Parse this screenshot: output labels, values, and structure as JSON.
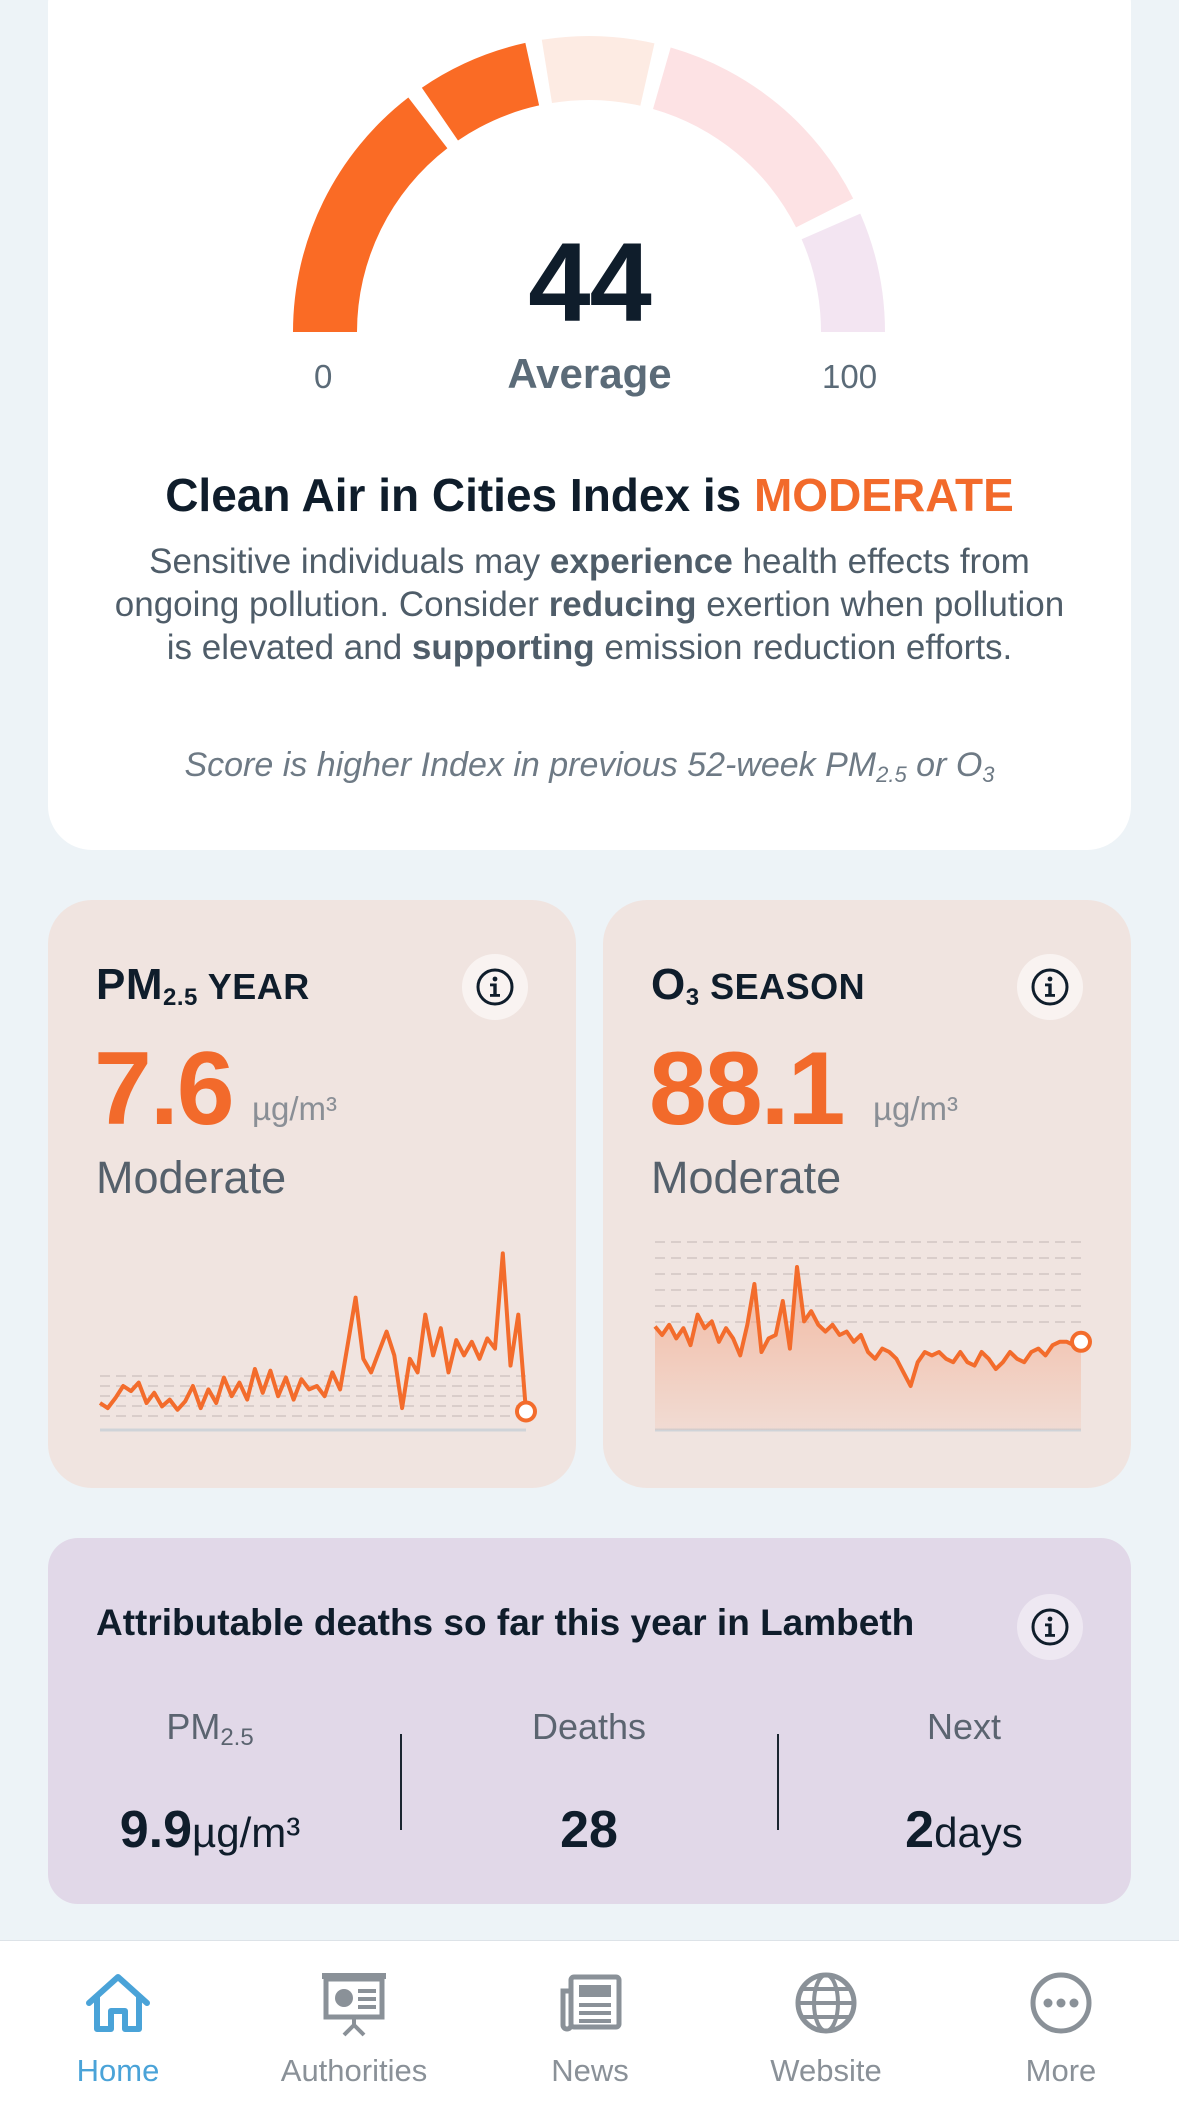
{
  "gauge": {
    "value": "44",
    "label": "Average",
    "min_label": "0",
    "max_label": "100",
    "fraction": 0.44,
    "colors": {
      "active": "#fa6b25",
      "inactive_1": "#fdebe3",
      "inactive_2": "#fde2e4",
      "inactive_3": "#f3e5f2"
    }
  },
  "index": {
    "title_prefix": "Clean Air in Cities Index is",
    "level": "MODERATE",
    "desc_1": "Sensitive individuals may ",
    "desc_b1": "experience",
    "desc_2": " health effects from ongoing pollution. Consider ",
    "desc_b2": "reducing",
    "desc_3": " exertion when pollution is elevated and ",
    "desc_b3": "supporting",
    "desc_4": " emission reduction efforts.",
    "note_1": "Score is higher Index in previous 52-week PM",
    "note_sub1": "2.5",
    "note_2": " or O",
    "note_sub2": "3"
  },
  "pm_card": {
    "title_main": "PM",
    "title_sub": "2.5",
    "title_rest": " YEAR",
    "value": "7.6",
    "unit": "µg/m³",
    "status": "Moderate",
    "info_icon": "info-icon",
    "sparkline": [
      0.1,
      0.07,
      0.13,
      0.2,
      0.17,
      0.22,
      0.1,
      0.16,
      0.08,
      0.12,
      0.06,
      0.11,
      0.2,
      0.07,
      0.18,
      0.1,
      0.25,
      0.14,
      0.22,
      0.12,
      0.3,
      0.16,
      0.29,
      0.14,
      0.25,
      0.12,
      0.24,
      0.18,
      0.2,
      0.14,
      0.28,
      0.18,
      0.45,
      0.72,
      0.36,
      0.28,
      0.4,
      0.52,
      0.38,
      0.07,
      0.36,
      0.28,
      0.62,
      0.38,
      0.54,
      0.28,
      0.47,
      0.38,
      0.46,
      0.36,
      0.48,
      0.42,
      0.98,
      0.32,
      0.62,
      0.05
    ]
  },
  "o3_card": {
    "title_main": "O",
    "title_sub": "3",
    "title_rest": " SEASON",
    "value": "88.1",
    "unit": "µg/m³",
    "status": "Moderate",
    "info_icon": "info-icon",
    "sparkline": [
      0.55,
      0.5,
      0.56,
      0.48,
      0.54,
      0.44,
      0.62,
      0.54,
      0.58,
      0.46,
      0.54,
      0.48,
      0.38,
      0.56,
      0.8,
      0.4,
      0.48,
      0.5,
      0.7,
      0.42,
      0.9,
      0.58,
      0.64,
      0.56,
      0.52,
      0.56,
      0.5,
      0.52,
      0.46,
      0.5,
      0.4,
      0.36,
      0.42,
      0.4,
      0.36,
      0.28,
      0.2,
      0.34,
      0.4,
      0.38,
      0.4,
      0.36,
      0.34,
      0.4,
      0.34,
      0.32,
      0.4,
      0.36,
      0.3,
      0.34,
      0.4,
      0.36,
      0.34,
      0.4,
      0.42,
      0.38,
      0.44,
      0.46,
      0.46,
      0.44,
      0.46
    ]
  },
  "deaths": {
    "title": "Attributable deaths so far this year in Lambeth",
    "info_icon": "info-icon",
    "pm_label": "PM",
    "pm_label_sub": "2.5",
    "pm_value": "9.9",
    "pm_unit": "µg/m³",
    "deaths_label": "Deaths",
    "deaths_value": "28",
    "next_label": "Next",
    "next_value": "2",
    "next_unit": "days"
  },
  "nav": {
    "items": [
      {
        "label": "Home",
        "icon": "home-icon"
      },
      {
        "label": "Authorities",
        "icon": "presentation-icon"
      },
      {
        "label": "News",
        "icon": "newspaper-icon"
      },
      {
        "label": "Website",
        "icon": "globe-icon"
      },
      {
        "label": "More",
        "icon": "more-icon"
      }
    ],
    "active_color": "#4aa3d8",
    "inactive_color": "#8a9198"
  }
}
